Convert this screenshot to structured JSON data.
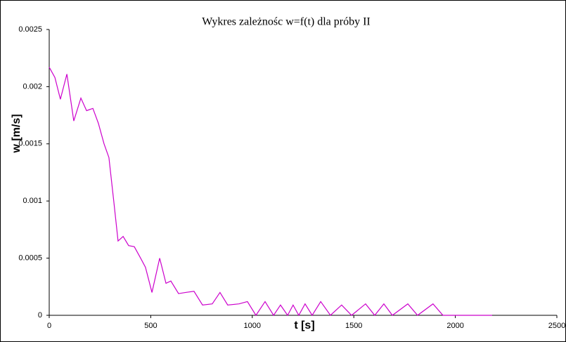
{
  "chart_data": {
    "type": "line",
    "title": "Wykres zależnośc w=f(t) dla próby II",
    "x_label": "t [s]",
    "y_label": "w [m/s]",
    "xlim": [
      0,
      2500
    ],
    "xticks": [
      0,
      500,
      1000,
      1500,
      2000,
      2500
    ],
    "ylim": [
      0,
      0.0025
    ],
    "yticks": [
      0,
      0.0005,
      0.001,
      0.0015,
      0.002,
      0.0025
    ],
    "grid": false,
    "series": [
      {
        "name": "w",
        "color": "#cc00cc",
        "x": [
          0,
          28,
          55,
          87,
          121,
          156,
          184,
          215,
          242,
          270,
          294,
          319,
          339,
          364,
          391,
          419,
          450,
          474,
          506,
          544,
          575,
          599,
          637,
          672,
          713,
          755,
          803,
          841,
          879,
          935,
          976,
          1018,
          1063,
          1105,
          1139,
          1174,
          1201,
          1229,
          1260,
          1295,
          1337,
          1385,
          1440,
          1489,
          1558,
          1603,
          1648,
          1690,
          1766,
          1814,
          1890,
          1939,
          2181
        ],
        "values": [
          0.00217,
          0.00208,
          0.00189,
          0.00211,
          0.0017,
          0.0019,
          0.00179,
          0.00181,
          0.00168,
          0.0015,
          0.00138,
          0.00098,
          0.00065,
          0.00069,
          0.00061,
          0.0006,
          0.0005,
          0.00042,
          0.0002,
          0.0005,
          0.00028,
          0.0003,
          0.00019,
          0.0002,
          0.00021,
          9e-05,
          0.0001,
          0.0002,
          9e-05,
          0.0001,
          0.00012,
          0,
          0.00012,
          0,
          9e-05,
          0,
          9e-05,
          0,
          0.0001,
          0,
          0.00012,
          0,
          9e-05,
          0,
          0.0001,
          0,
          0.0001,
          0,
          0.0001,
          0,
          0.0001,
          0,
          0
        ]
      }
    ]
  }
}
